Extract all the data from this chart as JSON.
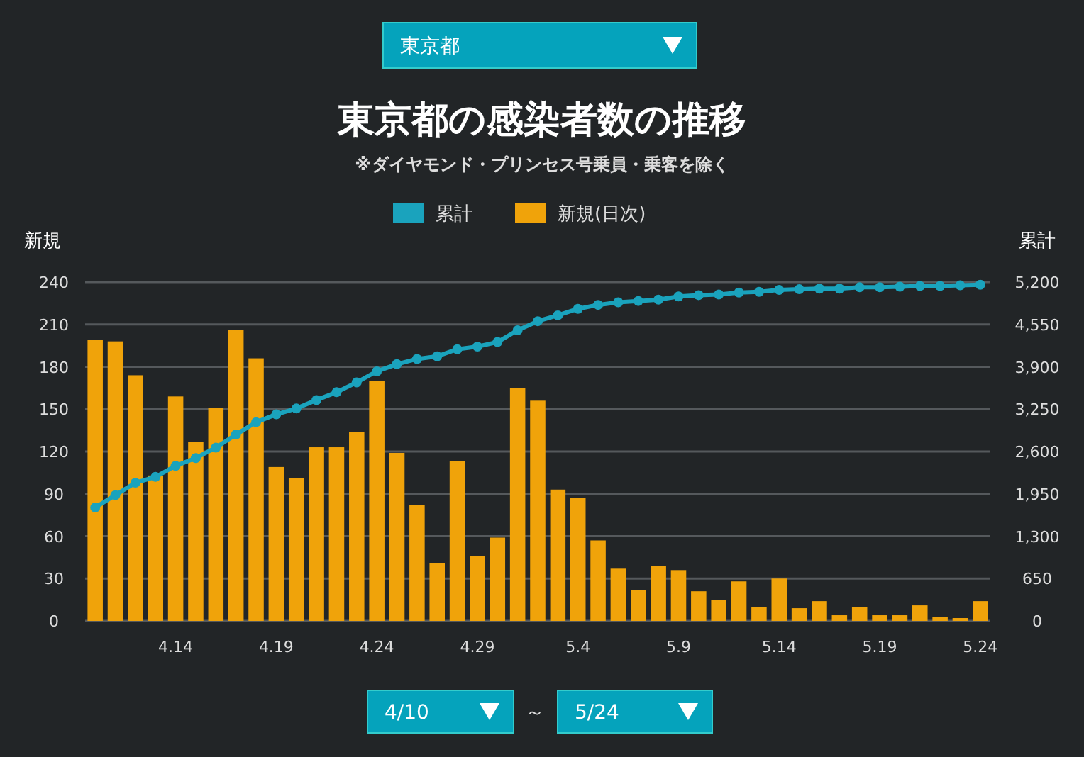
{
  "chart_data": {
    "type": "bar",
    "title": "東京都の感染者数の推移",
    "subtitle": "※ダイヤモンド・プリンセス号乗員・乗客を除く",
    "ylabel": "新規",
    "y2label": "累計",
    "annotations": [
      "東京都",
      "4/10",
      "～",
      "5/24"
    ],
    "categories": [
      null,
      null,
      null,
      null,
      "4.14",
      null,
      null,
      null,
      null,
      "4.19",
      null,
      null,
      null,
      null,
      "4.24",
      null,
      null,
      null,
      null,
      "4.29",
      null,
      null,
      null,
      null,
      "5.4",
      null,
      null,
      null,
      null,
      "5.9",
      null,
      null,
      null,
      null,
      "5.14",
      null,
      null,
      null,
      null,
      "5.19",
      null,
      null,
      null,
      null,
      "5.24"
    ],
    "series": [
      {
        "name": "累計",
        "type": "line",
        "axis": "y2",
        "color": "#1aa3bd",
        "values": [
          1740,
          1930,
          2120,
          2210,
          2380,
          2500,
          2660,
          2860,
          3050,
          3170,
          3260,
          3390,
          3510,
          3660,
          3830,
          3940,
          4020,
          4060,
          4170,
          4210,
          4280,
          4460,
          4600,
          4690,
          4790,
          4850,
          4890,
          4910,
          4930,
          4980,
          5000,
          5010,
          5040,
          5050,
          5080,
          5090,
          5100,
          5100,
          5120,
          5120,
          5130,
          5140,
          5140,
          5150,
          5160
        ]
      },
      {
        "name": "新規(日次)",
        "color": "#f0a30a",
        "values": [
          199,
          198,
          174,
          103,
          159,
          127,
          151,
          206,
          186,
          109,
          101,
          123,
          123,
          134,
          170,
          119,
          82,
          41,
          113,
          46,
          59,
          165,
          156,
          93,
          87,
          57,
          37,
          22,
          39,
          36,
          21,
          15,
          28,
          10,
          30,
          9,
          14,
          4,
          10,
          4,
          4,
          11,
          3,
          2,
          14
        ]
      }
    ],
    "ylim": [
      0,
      240
    ],
    "yticks": [
      0,
      30,
      60,
      90,
      120,
      150,
      180,
      210,
      240
    ],
    "y2lim": [
      0,
      5200
    ],
    "y2ticks": [
      0,
      650,
      {
        "value": 1300,
        "label": "1,300"
      },
      {
        "value": 1950,
        "label": "1,950"
      },
      {
        "value": 2600,
        "label": "2,600"
      },
      {
        "value": 3250,
        "label": "3,250"
      },
      {
        "value": 3900,
        "label": "3,900"
      },
      {
        "value": 4550,
        "label": "4,550"
      },
      {
        "value": 5200,
        "label": "5,200"
      }
    ],
    "grid": "y",
    "legend": "top",
    "marker": "circle"
  }
}
